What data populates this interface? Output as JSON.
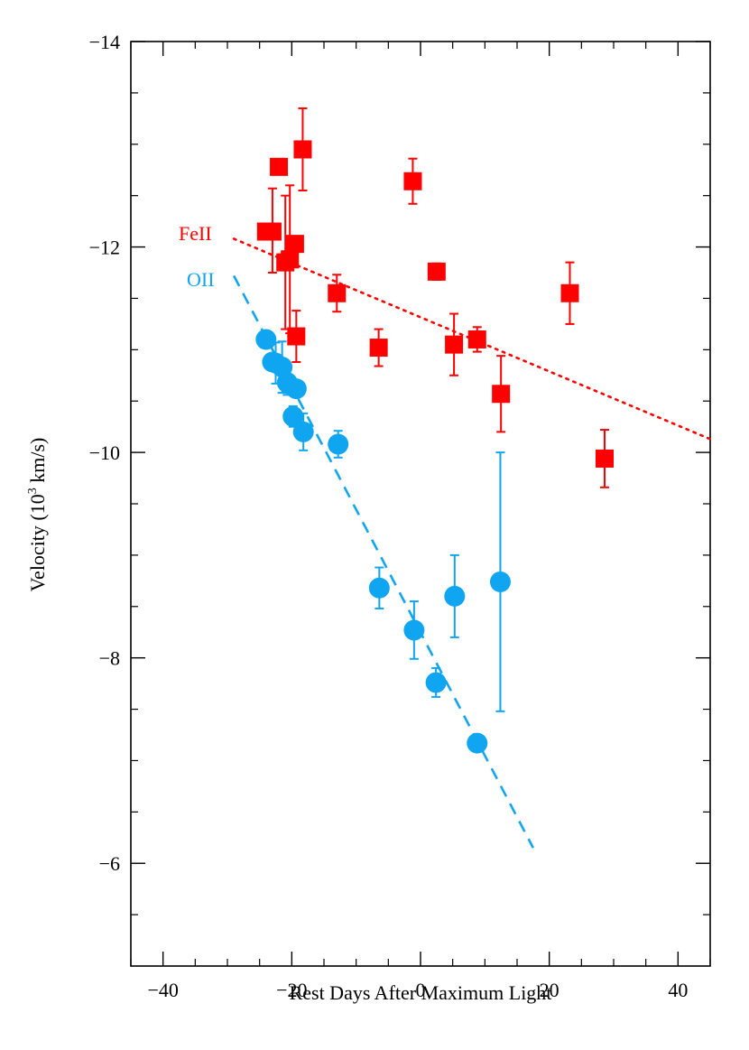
{
  "chart_data": {
    "type": "scatter",
    "title": "",
    "xlabel": "Rest Days After Maximum Light",
    "ylabel_prefix": "Velocity (10",
    "ylabel_sup": "3",
    "ylabel_suffix": " km/s)",
    "xlim": [
      -45,
      45
    ],
    "ylim": [
      -14,
      -5
    ],
    "y_inverted_display": true,
    "x_ticks": [
      -40,
      -20,
      0,
      20,
      40
    ],
    "x_tick_labels": [
      "−40",
      "−20",
      "0",
      "20",
      "40"
    ],
    "y_ticks": [
      -14,
      -12,
      -10,
      -8,
      -6
    ],
    "y_tick_labels": [
      "−14",
      "−12",
      "−10",
      "−8",
      "−6"
    ],
    "x_minor_step": 5,
    "y_minor_step": 0.5,
    "grid": false,
    "series": [
      {
        "name": "FeII",
        "color": "#ff0000",
        "marker": "square",
        "points": [
          {
            "x": -24.0,
            "y": -12.15,
            "err_up": 0.0,
            "err_down": 0.0
          },
          {
            "x": -23.0,
            "y": -12.15,
            "err_up": 0.42,
            "err_down": 0.4
          },
          {
            "x": -22.0,
            "y": -12.78,
            "err_up": 0.05,
            "err_down": 0.05
          },
          {
            "x": -21.0,
            "y": -11.85,
            "err_up": 0.65,
            "err_down": 0.65
          },
          {
            "x": -20.3,
            "y": -11.88,
            "err_up": 0.72,
            "err_down": 0.72
          },
          {
            "x": -19.5,
            "y": -12.03,
            "err_up": 0.0,
            "err_down": 0.0
          },
          {
            "x": -19.3,
            "y": -11.13,
            "err_up": 0.25,
            "err_down": 0.25
          },
          {
            "x": -18.3,
            "y": -12.95,
            "err_up": 0.4,
            "err_down": 0.4
          },
          {
            "x": -13.0,
            "y": -11.55,
            "err_up": 0.18,
            "err_down": 0.18
          },
          {
            "x": -6.5,
            "y": -11.02,
            "err_up": 0.18,
            "err_down": 0.18
          },
          {
            "x": -1.2,
            "y": -12.64,
            "err_up": 0.22,
            "err_down": 0.22
          },
          {
            "x": 2.5,
            "y": -11.76,
            "err_up": 0.08,
            "err_down": 0.08
          },
          {
            "x": 5.2,
            "y": -11.05,
            "err_up": 0.3,
            "err_down": 0.3
          },
          {
            "x": 8.8,
            "y": -11.1,
            "err_up": 0.12,
            "err_down": 0.12
          },
          {
            "x": 12.5,
            "y": -10.57,
            "err_up": 0.37,
            "err_down": 0.37
          },
          {
            "x": 23.2,
            "y": -11.55,
            "err_up": 0.3,
            "err_down": 0.3
          },
          {
            "x": 28.6,
            "y": -9.94,
            "err_up": 0.28,
            "err_down": 0.28
          }
        ]
      },
      {
        "name": "OII",
        "color": "#10a5f0",
        "marker": "circle",
        "points": [
          {
            "x": -24.0,
            "y": -11.1,
            "err_up": 0.0,
            "err_down": 0.0
          },
          {
            "x": -23.0,
            "y": -10.88,
            "err_up": 0.0,
            "err_down": 0.0
          },
          {
            "x": -22.5,
            "y": -10.87,
            "err_up": 0.2,
            "err_down": 0.2
          },
          {
            "x": -21.5,
            "y": -10.83,
            "err_up": 0.25,
            "err_down": 0.25
          },
          {
            "x": -20.7,
            "y": -10.68,
            "err_up": 0.12,
            "err_down": 0.12
          },
          {
            "x": -19.3,
            "y": -10.62,
            "err_up": 0.0,
            "err_down": 0.0
          },
          {
            "x": -19.8,
            "y": -10.35,
            "err_up": 0.1,
            "err_down": 0.1
          },
          {
            "x": -18.2,
            "y": -10.2,
            "err_up": 0.18,
            "err_down": 0.18
          },
          {
            "x": -12.8,
            "y": -10.08,
            "err_up": 0.13,
            "err_down": 0.13
          },
          {
            "x": -6.4,
            "y": -8.68,
            "err_up": 0.2,
            "err_down": 0.2
          },
          {
            "x": -1.0,
            "y": -8.27,
            "err_up": 0.28,
            "err_down": 0.28
          },
          {
            "x": 2.4,
            "y": -7.76,
            "err_up": 0.14,
            "err_down": 0.14
          },
          {
            "x": 5.3,
            "y": -8.6,
            "err_up": 0.4,
            "err_down": 0.4
          },
          {
            "x": 8.8,
            "y": -7.17,
            "err_up": 0.0,
            "err_down": 0.0
          },
          {
            "x": 12.4,
            "y": -8.74,
            "err_up": 1.26,
            "err_down": 1.26
          }
        ]
      }
    ],
    "fit_lines": [
      {
        "series": "FeII",
        "style": "dotted",
        "color": "#ff0000",
        "x": [
          -29.0,
          45.0
        ],
        "y": [
          -12.08,
          -10.13
        ]
      },
      {
        "series": "OII",
        "style": "dashed",
        "color": "#10a5f0",
        "x": [
          -29.0,
          17.5
        ],
        "y": [
          -11.72,
          -6.15
        ]
      }
    ]
  }
}
